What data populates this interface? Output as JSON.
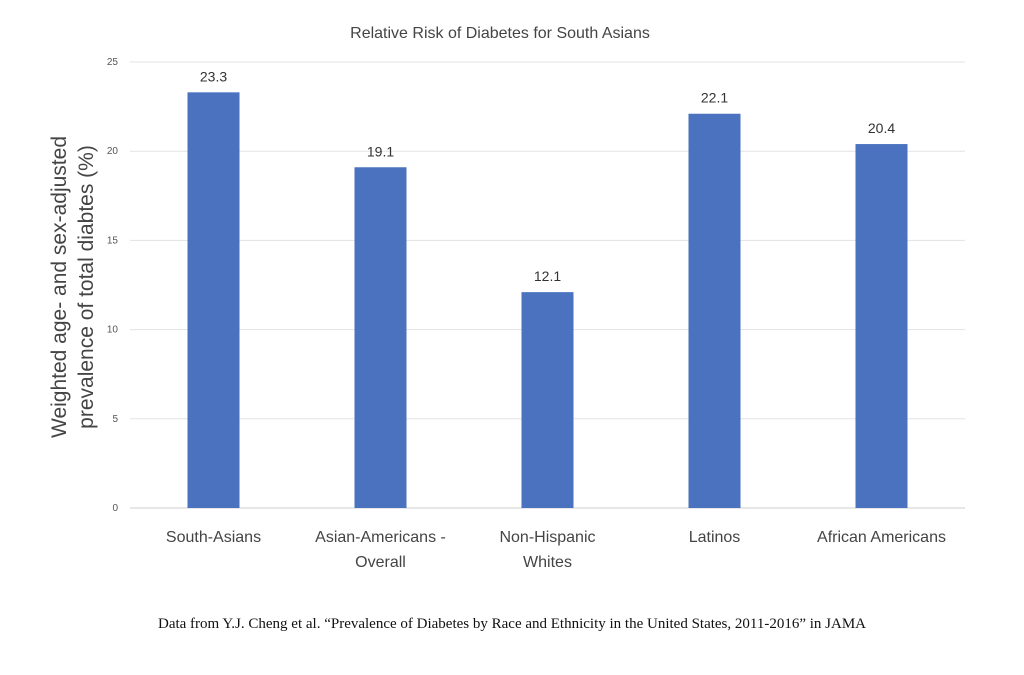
{
  "chart_data": {
    "type": "bar",
    "title": "Relative Risk of Diabetes for South Asians",
    "ylabel_lines": [
      "Weighted age- and sex-adjusted",
      "prevalence of total diabtes (%)"
    ],
    "xlabel": "",
    "categories": [
      [
        "South-Asians"
      ],
      [
        "Asian-Americans -",
        "Overall"
      ],
      [
        "Non-Hispanic",
        "Whites"
      ],
      [
        "Latinos"
      ],
      [
        "African Americans"
      ]
    ],
    "values": [
      23.3,
      19.1,
      12.1,
      22.1,
      20.4
    ],
    "data_labels": [
      "23.3",
      "19.1",
      "12.1",
      "22.1",
      "20.4"
    ],
    "ylim": [
      0,
      25
    ],
    "yticks": [
      0,
      5,
      10,
      15,
      20,
      25
    ],
    "grid": true,
    "legend": "none",
    "bar_color": "#4a72be"
  },
  "source_note": "Data from Y.J. Cheng et al. “Prevalence of Diabetes by Race and Ethnicity in the United States, 2011-2016” in JAMA"
}
